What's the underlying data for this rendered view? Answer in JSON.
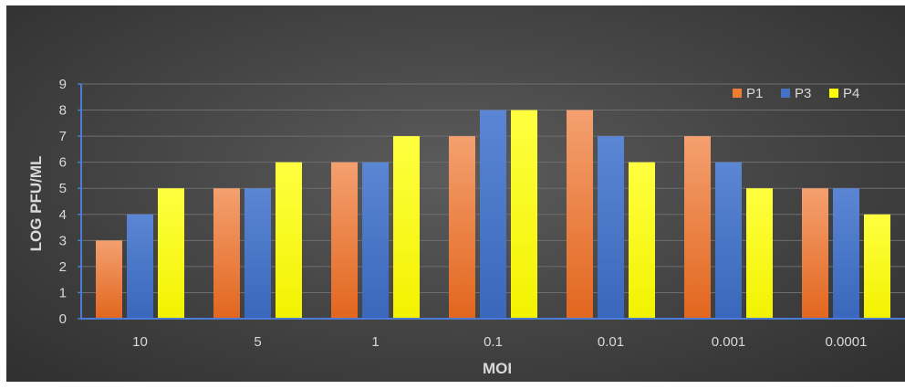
{
  "chart_data": {
    "type": "bar",
    "title": "",
    "xlabel": "MOI",
    "ylabel": "LOG PFU/ML",
    "ylim": [
      0,
      9
    ],
    "yticks": [
      0,
      1,
      2,
      3,
      4,
      5,
      6,
      7,
      8,
      9
    ],
    "grid": true,
    "legend_position": "top-right",
    "categories": [
      "10",
      "5",
      "1",
      "0.1",
      "0.01",
      "0.001",
      "0.0001"
    ],
    "series": [
      {
        "name": "P1",
        "color": "#ed7d31",
        "values": [
          3,
          5,
          6,
          7,
          8,
          7,
          5
        ]
      },
      {
        "name": "P3",
        "color": "#4472c4",
        "values": [
          4,
          5,
          6,
          8,
          7,
          6,
          5
        ]
      },
      {
        "name": "P4",
        "color": "#ffff00",
        "values": [
          5,
          6,
          7,
          8,
          6,
          5,
          4
        ]
      }
    ]
  }
}
